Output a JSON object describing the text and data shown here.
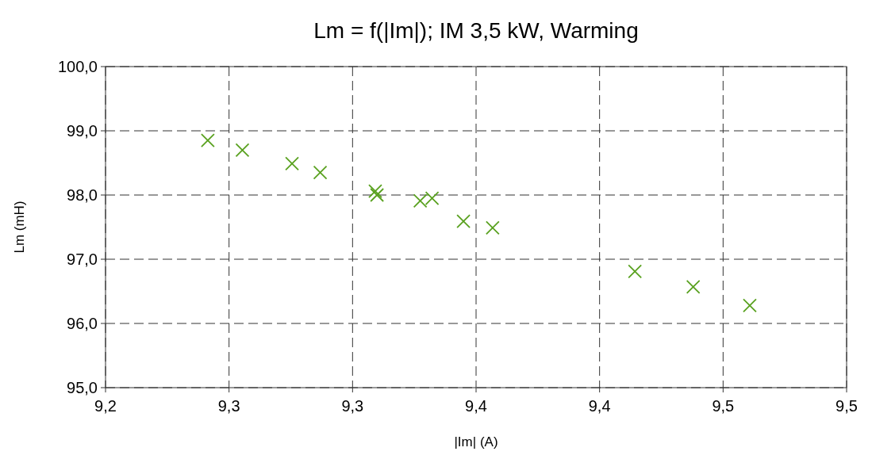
{
  "chart_data": {
    "type": "scatter",
    "title": "Lm = f(|Im|); IM 3,5 kW, Warming",
    "xlabel": "|Im| (A)",
    "ylabel": "Lm (mH)",
    "x": [
      9.2414,
      9.2554,
      9.2755,
      9.2869,
      9.3092,
      9.3099,
      9.3274,
      9.3322,
      9.3449,
      9.3567,
      9.4143,
      9.4379,
      9.4608
    ],
    "series": [
      {
        "color": "#59a11f",
        "values": [
          98.85,
          98.7,
          98.49,
          98.35,
          98.06,
          98.0,
          97.91,
          97.95,
          97.59,
          97.49,
          96.81,
          96.57,
          96.28
        ]
      }
    ],
    "xlim": [
      9.2,
      9.5
    ],
    "xticks": [
      {
        "value": 9.2,
        "label": "9,2"
      },
      {
        "value": 9.25,
        "label": "9,3"
      },
      {
        "value": 9.3,
        "label": "9,3"
      },
      {
        "value": 9.35,
        "label": "9,4"
      },
      {
        "value": 9.4,
        "label": "9,4"
      },
      {
        "value": 9.45,
        "label": "9,5"
      },
      {
        "value": 9.5,
        "label": "9,5"
      }
    ],
    "ylim": [
      95,
      100
    ],
    "yticks": [
      {
        "value": 95,
        "label": "95,0"
      },
      {
        "value": 96,
        "label": "96,0"
      },
      {
        "value": 97,
        "label": "97,0"
      },
      {
        "value": 98,
        "label": "98,0"
      },
      {
        "value": 99,
        "label": "99,0"
      },
      {
        "value": 100,
        "label": "100,0"
      }
    ],
    "grid": true,
    "marker": "cross"
  }
}
